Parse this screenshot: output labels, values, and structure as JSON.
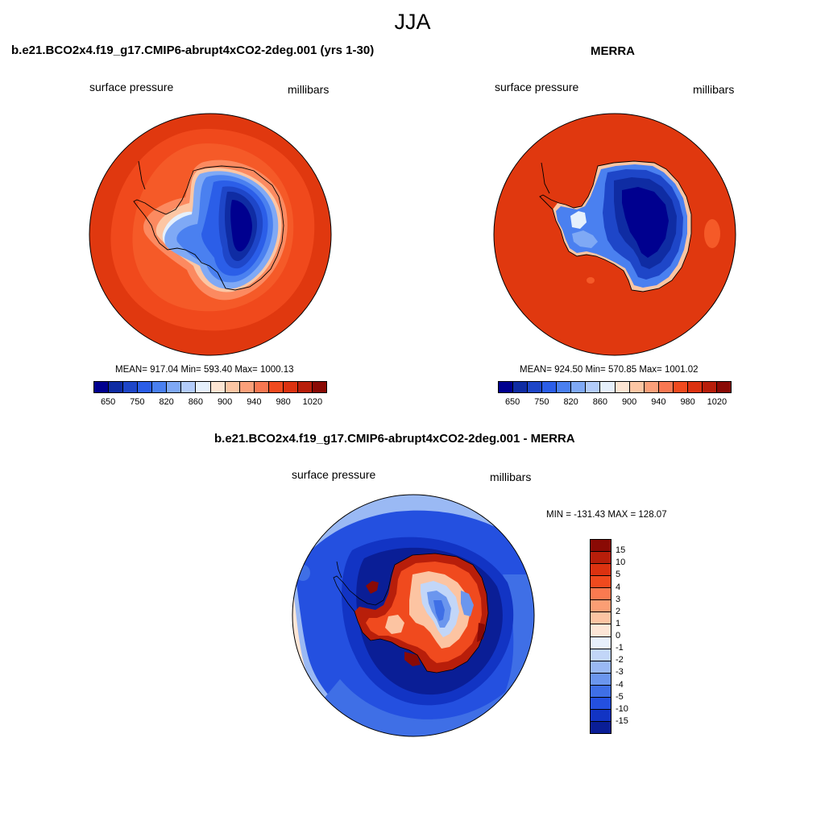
{
  "figure": {
    "season": "JJA"
  },
  "panel1": {
    "title": "b.e21.BCO2x4.f19_g17.CMIP6-abrupt4xCO2-2deg.001 (yrs 1-30)",
    "left_label": "surface pressure",
    "right_label": "millibars",
    "stats": "MEAN= 917.04  Min= 593.40  Max= 1000.13"
  },
  "panel2": {
    "title": "MERRA",
    "left_label": "surface pressure",
    "right_label": "millibars",
    "stats": "MEAN= 924.50  Min= 570.85  Max= 1001.02"
  },
  "panel3": {
    "title": "b.e21.BCO2x4.f19_g17.CMIP6-abrupt4xCO2-2deg.001 - MERRA",
    "left_label": "surface pressure",
    "right_label": "millibars",
    "minmax": "MIN = -131.43 MAX = 128.07"
  },
  "pressure_colorbar": {
    "colors": [
      "#00008f",
      "#0f2ca3",
      "#1e46c8",
      "#2b5ee8",
      "#4a80f0",
      "#7fa9f5",
      "#b3ccfa",
      "#e6f0fc",
      "#fde5d3",
      "#fcc6a4",
      "#fba07a",
      "#f87852",
      "#f04a1e",
      "#dc3210",
      "#b81e0a",
      "#8a0a05"
    ],
    "ticks": [
      "650",
      "750",
      "820",
      "860",
      "900",
      "940",
      "980",
      "1020"
    ]
  },
  "diff_colorbar": {
    "colors": [
      "#8a0a05",
      "#b81e0a",
      "#dc3210",
      "#f04a1e",
      "#fa7a50",
      "#fb9e74",
      "#fcc4a2",
      "#fde6d6",
      "#e8f0fc",
      "#c2d6f8",
      "#9ab9f4",
      "#6b96ee",
      "#3f6fe6",
      "#2450e0",
      "#1234c4",
      "#0a1e96"
    ],
    "ticks": [
      "15",
      "10",
      "5",
      "4",
      "3",
      "2",
      "1",
      "0",
      "-1",
      "-2",
      "-3",
      "-4",
      "-5",
      "-10",
      "-15"
    ]
  }
}
